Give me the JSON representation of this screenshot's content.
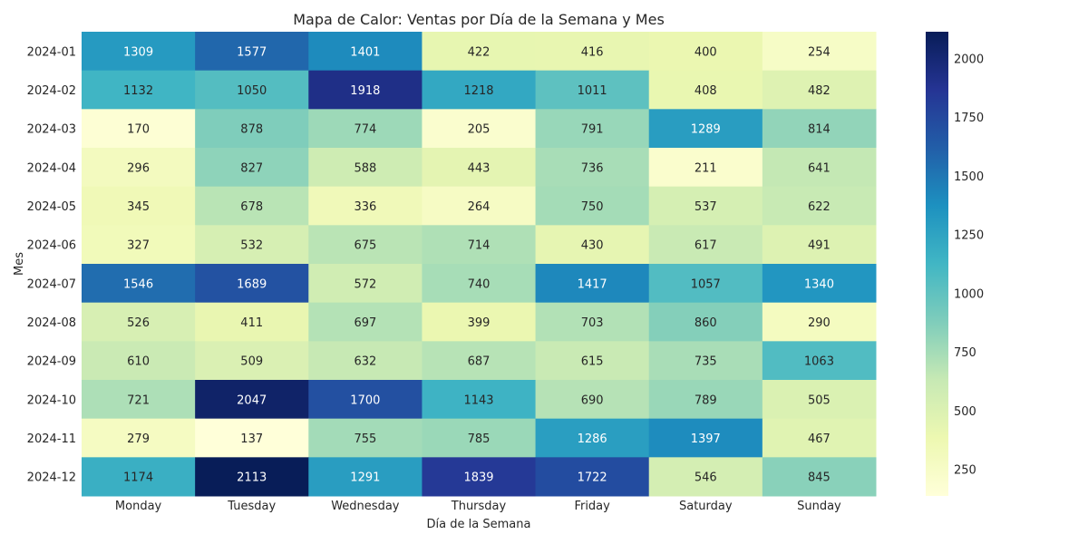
{
  "chart_data": {
    "type": "heatmap",
    "title": "Mapa de Calor: Ventas por Día de la Semana y Mes",
    "xlabel": "Día de la Semana",
    "ylabel": "Mes",
    "x_categories": [
      "Monday",
      "Tuesday",
      "Wednesday",
      "Thursday",
      "Friday",
      "Saturday",
      "Sunday"
    ],
    "y_categories": [
      "2024-01",
      "2024-02",
      "2024-03",
      "2024-04",
      "2024-05",
      "2024-06",
      "2024-07",
      "2024-08",
      "2024-09",
      "2024-10",
      "2024-11",
      "2024-12"
    ],
    "values": [
      [
        1309,
        1577,
        1401,
        422,
        416,
        400,
        254
      ],
      [
        1132,
        1050,
        1918,
        1218,
        1011,
        408,
        482
      ],
      [
        170,
        878,
        774,
        205,
        791,
        1289,
        814
      ],
      [
        296,
        827,
        588,
        443,
        736,
        211,
        641
      ],
      [
        345,
        678,
        336,
        264,
        750,
        537,
        622
      ],
      [
        327,
        532,
        675,
        714,
        430,
        617,
        491
      ],
      [
        1546,
        1689,
        572,
        740,
        1417,
        1057,
        1340
      ],
      [
        526,
        411,
        697,
        399,
        703,
        860,
        290
      ],
      [
        610,
        509,
        632,
        687,
        615,
        735,
        1063
      ],
      [
        721,
        2047,
        1700,
        1143,
        690,
        789,
        505
      ],
      [
        279,
        137,
        755,
        785,
        1286,
        1397,
        467
      ],
      [
        1174,
        2113,
        1291,
        1839,
        1722,
        546,
        845
      ]
    ],
    "colormap": "YlGnBu",
    "colormap_stops": [
      "#ffffd9",
      "#edf8b1",
      "#c7e9b4",
      "#7fcdbb",
      "#41b6c4",
      "#1d91c0",
      "#225ea8",
      "#253494",
      "#081d58"
    ],
    "value_range": [
      137,
      2113
    ],
    "colorbar_ticks": [
      250,
      500,
      750,
      1000,
      1250,
      1500,
      1750,
      2000
    ],
    "colorbar_ticks_text": [
      "250",
      "500",
      "750",
      "1000",
      "1250",
      "1500",
      "1750",
      "2000"
    ],
    "annotations_text": [
      [
        "1309",
        "1577",
        "1401",
        "422",
        "416",
        "400",
        "254"
      ],
      [
        "1132",
        "1050",
        "1918",
        "1218",
        "1011",
        "408",
        "482"
      ],
      [
        "170",
        "878",
        "774",
        "205",
        "791",
        "1289",
        "814"
      ],
      [
        "296",
        "827",
        "588",
        "443",
        "736",
        "211",
        "641"
      ],
      [
        "345",
        "678",
        "336",
        "264",
        "750",
        "537",
        "622"
      ],
      [
        "327",
        "532",
        "675",
        "714",
        "430",
        "617",
        "491"
      ],
      [
        "1546",
        "1689",
        "572",
        "740",
        "1417",
        "1057",
        "1340"
      ],
      [
        "526",
        "411",
        "697",
        "399",
        "703",
        "860",
        "290"
      ],
      [
        "610",
        "509",
        "632",
        "687",
        "615",
        "735",
        "1063"
      ],
      [
        "721",
        "2047",
        "1700",
        "1143",
        "690",
        "789",
        "505"
      ],
      [
        "279",
        "137",
        "755",
        "785",
        "1286",
        "1397",
        "467"
      ],
      [
        "1174",
        "2113",
        "1291",
        "1839",
        "1722",
        "546",
        "845"
      ]
    ],
    "grid": false,
    "legend": "colorbar-right"
  }
}
